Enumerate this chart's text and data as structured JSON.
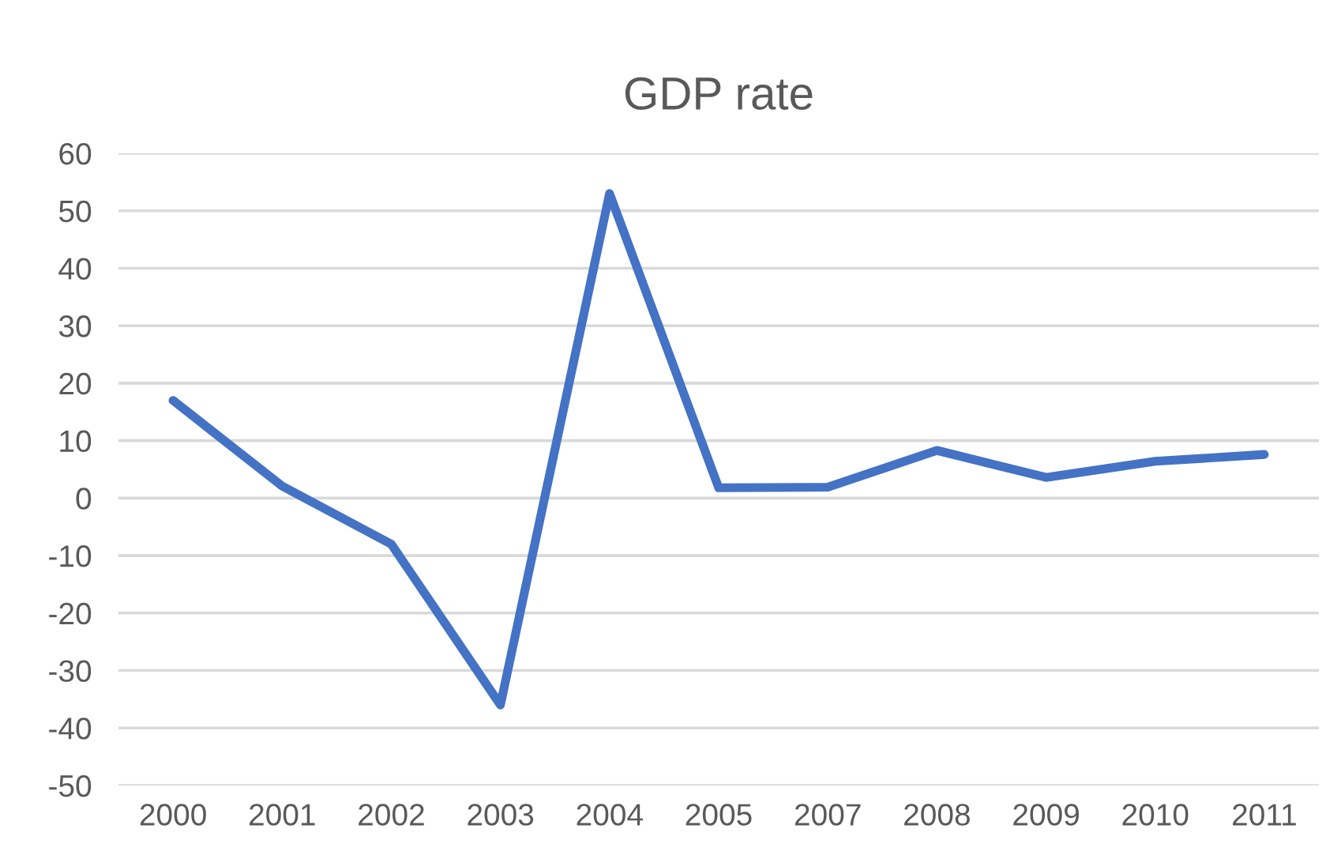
{
  "chart_data": {
    "type": "line",
    "title": "GDP rate",
    "categories": [
      "2000",
      "2001",
      "2002",
      "2003",
      "2004",
      "2005",
      "2007",
      "2008",
      "2009",
      "2010",
      "2011"
    ],
    "series": [
      {
        "color": "#4472c4",
        "values": [
          17,
          2.1,
          -8,
          -36,
          53,
          1.8,
          1.9,
          8.3,
          3.6,
          6.4,
          7.6
        ]
      }
    ],
    "ylim": [
      -50,
      60
    ],
    "yticks": [
      -50,
      -40,
      -30,
      -20,
      -10,
      0,
      10,
      20,
      30,
      40,
      50,
      60
    ],
    "grid": "y",
    "legend": false,
    "marker": "none",
    "line_style": "solid"
  }
}
